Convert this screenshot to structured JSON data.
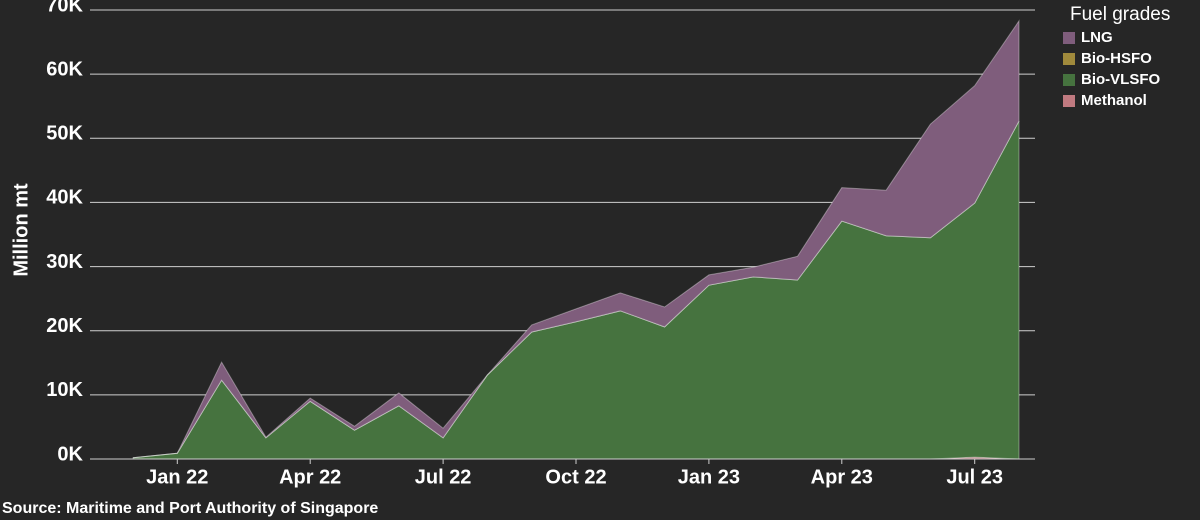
{
  "chart_data": {
    "type": "stacked_area",
    "y_label": "Million mt",
    "source": "Source: Maritime and Port Authority of Singapore",
    "legend_title": "Fuel grades",
    "categories": [
      null,
      "Jan 22",
      null,
      null,
      "Apr 22",
      null,
      null,
      "Jul 22",
      null,
      null,
      "Oct 22",
      null,
      null,
      "Jan 23",
      null,
      null,
      "Apr 23",
      null,
      null,
      "Jul 23",
      null
    ],
    "series": [
      {
        "name": "LNG",
        "color": "#7f5d7c",
        "values": [
          0,
          0,
          2800,
          100,
          500,
          600,
          2000,
          1500,
          0,
          1100,
          2000,
          2800,
          3100,
          1600,
          1500,
          3700,
          5200,
          7100,
          17700,
          18300,
          15600
        ]
      },
      {
        "name": "Bio-HSFO",
        "color": "#a08a3c",
        "values": [
          0,
          0,
          0,
          0,
          0,
          0,
          0,
          0,
          0,
          0,
          0,
          0,
          0,
          0,
          0,
          0,
          0,
          0,
          0,
          0,
          0
        ]
      },
      {
        "name": "Bio-VLSFO",
        "color": "#46733f",
        "values": [
          200,
          900,
          12300,
          3300,
          9000,
          4500,
          8300,
          3300,
          13100,
          19800,
          21400,
          23100,
          20600,
          27100,
          28400,
          27900,
          37100,
          34800,
          34500,
          39600,
          52700
        ]
      },
      {
        "name": "Methanol",
        "color": "#c07a80",
        "values": [
          0,
          0,
          0,
          0,
          0,
          0,
          0,
          0,
          0,
          0,
          0,
          0,
          0,
          0,
          0,
          0,
          0,
          0,
          0,
          300,
          0
        ]
      }
    ],
    "ylim": [
      0,
      70000
    ],
    "yticks": [
      {
        "value": 0,
        "label": "0K"
      },
      {
        "value": 10000,
        "label": "10K"
      },
      {
        "value": 20000,
        "label": "20K"
      },
      {
        "value": 30000,
        "label": "30K"
      },
      {
        "value": 40000,
        "label": "40K"
      },
      {
        "value": 50000,
        "label": "50K"
      },
      {
        "value": 60000,
        "label": "60K"
      },
      {
        "value": 70000,
        "label": "70K"
      }
    ],
    "grid": true
  }
}
